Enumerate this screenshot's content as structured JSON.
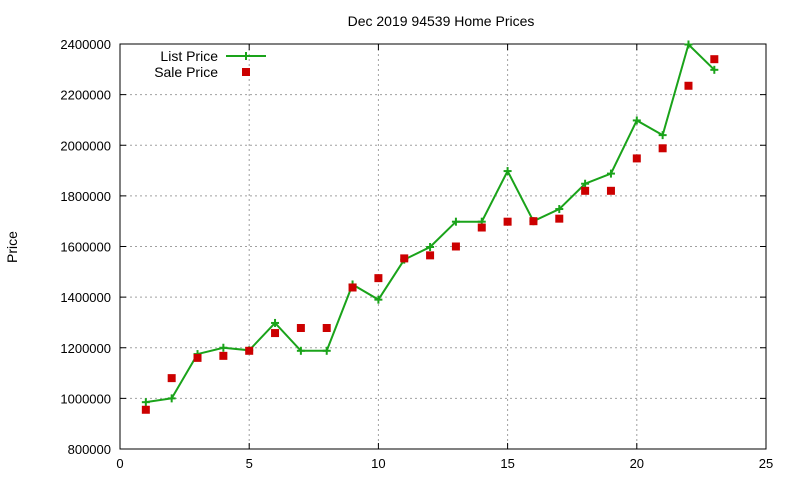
{
  "chart_data": {
    "type": "line",
    "title": "Dec 2019 94539 Home Prices",
    "xlabel": "",
    "ylabel": "Price",
    "xlim": [
      0,
      25
    ],
    "ylim": [
      800000,
      2400000
    ],
    "xticks": [
      0,
      5,
      10,
      15,
      20,
      25
    ],
    "yticks": [
      800000,
      1000000,
      1200000,
      1400000,
      1600000,
      1800000,
      2000000,
      2200000,
      2400000
    ],
    "grid": true,
    "legend_position": "top-left",
    "series": [
      {
        "name": "List Price",
        "style": "line-with-plus-markers",
        "color": "#1aa31a",
        "x": [
          1,
          2,
          3,
          4,
          5,
          6,
          7,
          8,
          9,
          10,
          11,
          12,
          13,
          14,
          15,
          16,
          17,
          18,
          19,
          20,
          21,
          22,
          23
        ],
        "y": [
          985000,
          1000000,
          1175000,
          1200000,
          1190000,
          1298000,
          1188000,
          1188000,
          1450000,
          1390000,
          1548000,
          1598000,
          1698000,
          1698000,
          1898000,
          1700000,
          1748000,
          1848000,
          1888000,
          2098000,
          2040000,
          2398000,
          2298000
        ]
      },
      {
        "name": "Sale Price",
        "style": "square-markers",
        "color": "#cc0000",
        "x": [
          1,
          2,
          3,
          4,
          5,
          6,
          7,
          8,
          9,
          10,
          11,
          12,
          13,
          14,
          15,
          16,
          17,
          18,
          19,
          20,
          21,
          22,
          23
        ],
        "y": [
          955000,
          1080000,
          1160000,
          1168000,
          1188000,
          1258000,
          1278000,
          1278000,
          1438000,
          1475000,
          1553000,
          1565000,
          1600000,
          1675000,
          1698000,
          1700000,
          1710000,
          1820000,
          1820000,
          1948000,
          1988000,
          2235000,
          2340000
        ]
      }
    ]
  }
}
